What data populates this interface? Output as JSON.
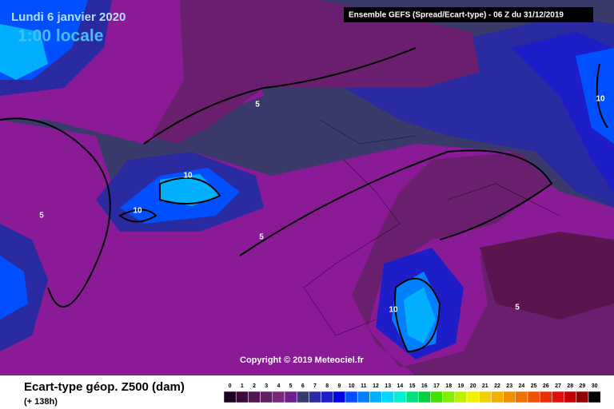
{
  "header": {
    "date": "Lundi 6 janvier 2020",
    "time": "1:00 locale",
    "run": "Ensemble GEFS  (Spread/Ecart-type) - 06 Z du 31/12/2019"
  },
  "contour_labels": [
    "5",
    "10",
    "10",
    "5",
    "5",
    "10",
    "10",
    "5"
  ],
  "copyright": "Copyright © 2019 Meteociel.fr",
  "legend": {
    "title": "Ecart-type géop. Z500 (dam)",
    "lead": "(+ 138h)",
    "ticks": [
      0,
      1,
      2,
      3,
      4,
      5,
      6,
      7,
      8,
      9,
      10,
      11,
      12,
      13,
      14,
      15,
      16,
      17,
      18,
      19,
      20,
      21,
      22,
      23,
      24,
      25,
      26,
      27,
      28,
      29,
      30
    ],
    "colors": [
      "#1e001e",
      "#3a0a3a",
      "#501450",
      "#641e64",
      "#7a287a",
      "#6e1e8c",
      "#3a3a6a",
      "#2a2aa0",
      "#1e1ec8",
      "#0000e6",
      "#0050ff",
      "#0080ff",
      "#00b0ff",
      "#00d8ff",
      "#00f0d0",
      "#00e080",
      "#00d040",
      "#40e000",
      "#80f000",
      "#c0f000",
      "#f0f000",
      "#f0d000",
      "#f0b000",
      "#f09000",
      "#f07000",
      "#f05000",
      "#e83000",
      "#e01010",
      "#c00000",
      "#900000",
      "#000000"
    ]
  }
}
